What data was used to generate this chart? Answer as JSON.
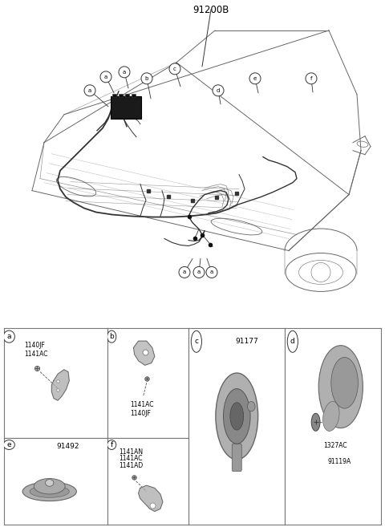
{
  "title": "91200B",
  "bg_color": "#ffffff",
  "fig_width": 4.8,
  "fig_height": 6.57,
  "dpi": 100,
  "diagram_label": "91200B",
  "cell_a_parts": [
    "1140JF",
    "1141AC"
  ],
  "cell_b_parts": [
    "1141AC",
    "1140JF"
  ],
  "cell_c_parts": [
    "91177"
  ],
  "cell_d_parts": [
    "1327AC",
    "91119A"
  ],
  "cell_e_parts": [
    "91492"
  ],
  "cell_f_parts": [
    "1141AN",
    "1141AC",
    "1141AD"
  ],
  "line_color": "#555555",
  "dark_color": "#222222",
  "mid_color": "#888888",
  "light_color": "#bbbbbb"
}
